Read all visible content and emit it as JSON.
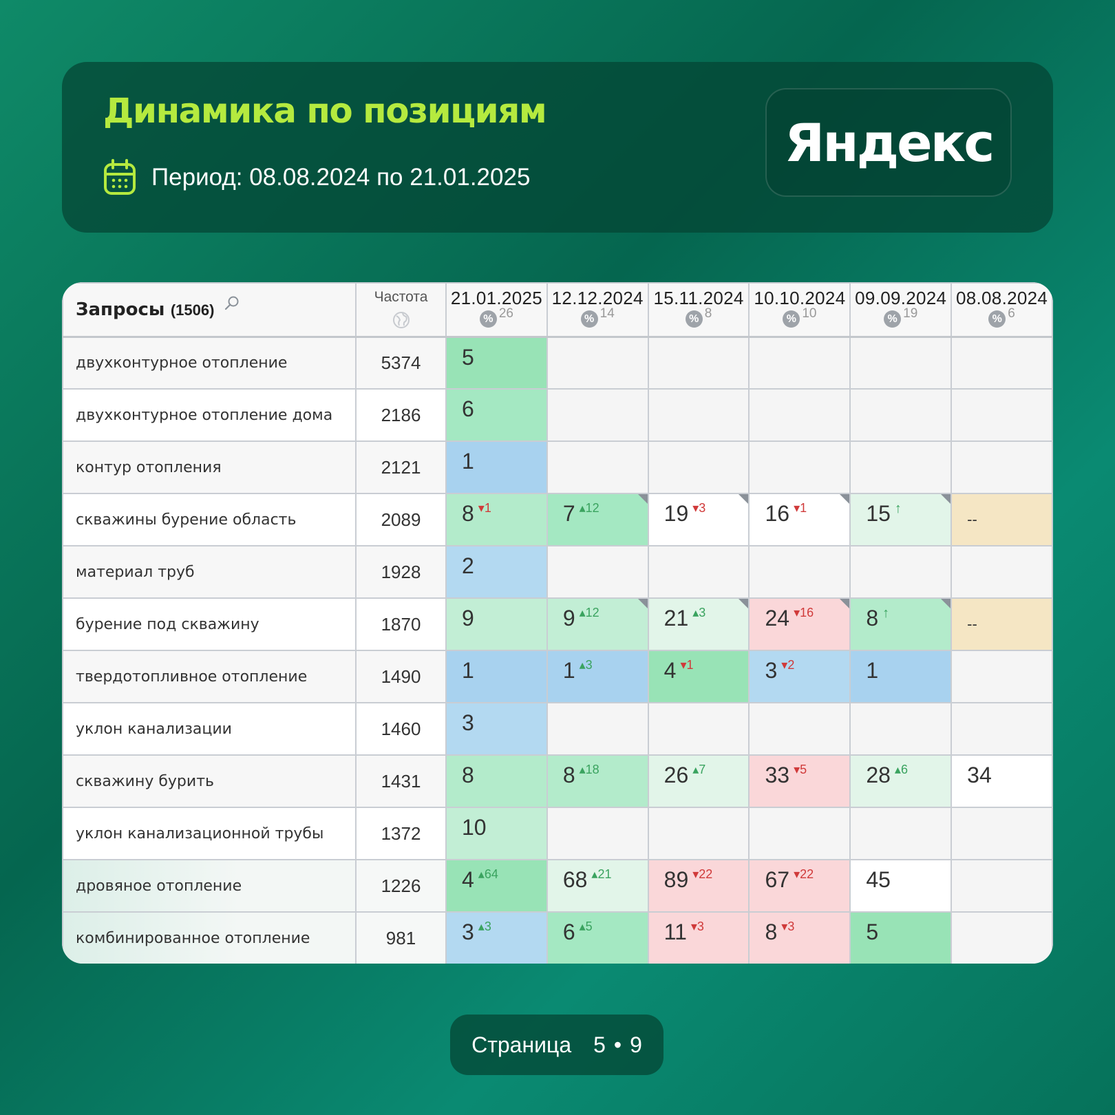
{
  "header": {
    "title": "Динамика по позициям",
    "period": "Период: 08.08.2024 по 21.01.2025",
    "brand": "Яндекс"
  },
  "table": {
    "queries_label": "Запросы",
    "queries_count": "(1506)",
    "freq_label": "Частота",
    "dates": [
      {
        "date": "21.01.2025",
        "pct": "26"
      },
      {
        "date": "12.12.2024",
        "pct": "14"
      },
      {
        "date": "15.11.2024",
        "pct": "8"
      },
      {
        "date": "10.10.2024",
        "pct": "10"
      },
      {
        "date": "09.09.2024",
        "pct": "19"
      },
      {
        "date": "08.08.2024",
        "pct": "6"
      }
    ],
    "rows": [
      {
        "query": "двухконтурное отопление",
        "freq": "5374",
        "cells": [
          {
            "v": "5",
            "bg": "#98e3b6"
          },
          {},
          {},
          {},
          {},
          {}
        ]
      },
      {
        "query": "двухконтурное отопление дома",
        "freq": "2186",
        "cells": [
          {
            "v": "6",
            "bg": "#a4e8c2"
          },
          {},
          {},
          {},
          {},
          {}
        ]
      },
      {
        "query": "контур отопления",
        "freq": "2121",
        "cells": [
          {
            "v": "1",
            "bg": "#a8d2ef"
          },
          {},
          {},
          {},
          {},
          {}
        ]
      },
      {
        "query": "скважины бурение область",
        "freq": "2089",
        "cells": [
          {
            "v": "8",
            "d": "-1",
            "dir": "down",
            "bg": "#b3ebcb"
          },
          {
            "v": "7",
            "d": "12",
            "dir": "up",
            "bg": "#a4e8c2",
            "corner": true
          },
          {
            "v": "19",
            "d": "-3",
            "dir": "down",
            "bg": "#ffffff",
            "corner": true
          },
          {
            "v": "16",
            "d": "-1",
            "dir": "down",
            "bg": "#ffffff",
            "corner": true
          },
          {
            "v": "15",
            "d": "↑",
            "dir": "new",
            "bg": "#e2f5e9",
            "corner": true
          },
          {
            "dash": "--",
            "bg": "#f5e6c4"
          }
        ]
      },
      {
        "query": "материал труб",
        "freq": "1928",
        "cells": [
          {
            "v": "2",
            "bg": "#b3d9f1"
          },
          {},
          {},
          {},
          {},
          {}
        ]
      },
      {
        "query": "бурение под скважину",
        "freq": "1870",
        "cells": [
          {
            "v": "9",
            "bg": "#c2eed5"
          },
          {
            "v": "9",
            "d": "12",
            "dir": "up",
            "bg": "#c2eed5",
            "corner": true
          },
          {
            "v": "21",
            "d": "3",
            "dir": "up",
            "bg": "#e2f5e9",
            "corner": true
          },
          {
            "v": "24",
            "d": "-16",
            "dir": "down",
            "bg": "#fad7d9",
            "corner": true
          },
          {
            "v": "8",
            "d": "↑",
            "dir": "new",
            "bg": "#b3ebcb",
            "corner": true
          },
          {
            "dash": "--",
            "bg": "#f5e6c4"
          }
        ]
      },
      {
        "query": "твердотопливное отопление",
        "freq": "1490",
        "cells": [
          {
            "v": "1",
            "bg": "#a8d2ef"
          },
          {
            "v": "1",
            "d": "3",
            "dir": "up",
            "bg": "#a8d2ef"
          },
          {
            "v": "4",
            "d": "-1",
            "dir": "down",
            "bg": "#98e3b6"
          },
          {
            "v": "3",
            "d": "-2",
            "dir": "down",
            "bg": "#b3d9f1"
          },
          {
            "v": "1",
            "bg": "#a8d2ef"
          },
          {}
        ]
      },
      {
        "query": "уклон канализации",
        "freq": "1460",
        "cells": [
          {
            "v": "3",
            "bg": "#b3d9f1"
          },
          {},
          {},
          {},
          {},
          {}
        ]
      },
      {
        "query": "скважину бурить",
        "freq": "1431",
        "cells": [
          {
            "v": "8",
            "bg": "#b3ebcb"
          },
          {
            "v": "8",
            "d": "18",
            "dir": "up",
            "bg": "#b3ebcb"
          },
          {
            "v": "26",
            "d": "7",
            "dir": "up",
            "bg": "#e2f5e9"
          },
          {
            "v": "33",
            "d": "-5",
            "dir": "down",
            "bg": "#fad7d9"
          },
          {
            "v": "28",
            "d": "6",
            "dir": "up",
            "bg": "#e2f5e9"
          },
          {
            "v": "34",
            "bg": "#ffffff"
          }
        ]
      },
      {
        "query": "уклон канализационной трубы",
        "freq": "1372",
        "cells": [
          {
            "v": "10",
            "bg": "#c2eed5"
          },
          {},
          {},
          {},
          {},
          {}
        ]
      },
      {
        "query": "дровяное отопление",
        "freq": "1226",
        "cells": [
          {
            "v": "4",
            "d": "64",
            "dir": "up",
            "bg": "#98e3b6"
          },
          {
            "v": "68",
            "d": "21",
            "dir": "up",
            "bg": "#e2f5e9"
          },
          {
            "v": "89",
            "d": "-22",
            "dir": "down",
            "bg": "#fad7d9"
          },
          {
            "v": "67",
            "d": "-22",
            "dir": "down",
            "bg": "#fad7d9"
          },
          {
            "v": "45",
            "bg": "#ffffff"
          },
          {}
        ]
      },
      {
        "query": "комбинированное отопление",
        "freq": "981",
        "cells": [
          {
            "v": "3",
            "d": "3",
            "dir": "up",
            "bg": "#b3d9f1"
          },
          {
            "v": "6",
            "d": "5",
            "dir": "up",
            "bg": "#a4e8c2"
          },
          {
            "v": "11",
            "d": "-3",
            "dir": "down",
            "bg": "#fad7d9"
          },
          {
            "v": "8",
            "d": "-3",
            "dir": "down",
            "bg": "#fad7d9"
          },
          {
            "v": "5",
            "bg": "#98e3b6"
          },
          {}
        ]
      }
    ]
  },
  "pager": {
    "label": "Страница",
    "current": "5",
    "total": "9"
  },
  "colors": {
    "accent": "#b5ea3f",
    "empty_cell": "#f5f5f5"
  },
  "icons": [
    "calendar-icon",
    "search-icon",
    "globe-icon",
    "percent-icon",
    "arrow-up-icon",
    "arrow-down-icon"
  ]
}
